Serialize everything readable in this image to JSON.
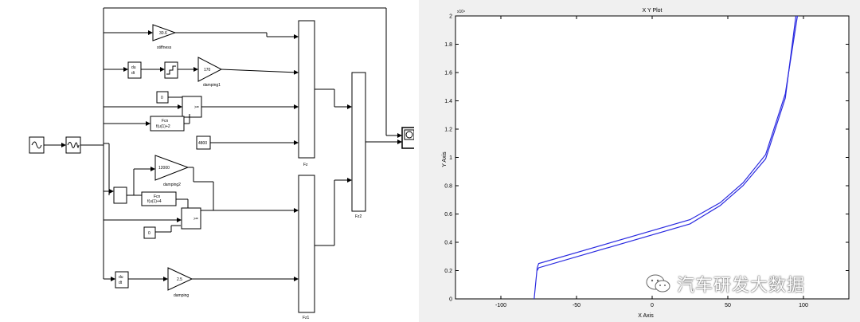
{
  "diagram": {
    "blocks": {
      "gain_stiffness": {
        "value": "30.6",
        "label": "stiffness"
      },
      "gain_damping1": {
        "value": "170",
        "label": "damping1"
      },
      "gain_damping2": {
        "value": "12000",
        "label": "damping2"
      },
      "gain_damping": {
        "value": "2.5",
        "label": "damping"
      },
      "const_top": "0",
      "const_bottom": "0",
      "const_4800": "4800",
      "fcn_top": {
        "line1": "Fcn",
        "line2": "f(u(1)+2"
      },
      "fcn_bottom": {
        "line1": "Fcn",
        "line2": "f(u(1)+4"
      },
      "deriv_top": {
        "line1": "du",
        "line2": "dt"
      },
      "deriv_bottom": {
        "line1": "du",
        "line2": "dt"
      },
      "switch_label": ">=",
      "mux_fz": "Fz",
      "mux_fz1": "Fz1",
      "mux_fz2": "Fz2"
    }
  },
  "plot": {
    "title": "X Y Plot",
    "xlabel": "X Axis",
    "ylabel": "Y Axis",
    "exponent_label": "x10⁴"
  },
  "chart_data": {
    "type": "line",
    "title": "X Y Plot",
    "xlabel": "X Axis",
    "ylabel": "Y Axis",
    "xlim": [
      -130,
      130
    ],
    "ylim": [
      0,
      2
    ],
    "y_scale_exponent": 4,
    "xticks": [
      -100,
      -50,
      0,
      50,
      100
    ],
    "xtick_labels": [
      "-100",
      "-50",
      "0",
      "50",
      "100"
    ],
    "yticks": [
      0,
      0.2,
      0.4,
      0.6,
      0.8,
      1,
      1.2,
      1.4,
      1.6,
      1.8,
      2
    ],
    "ytick_labels": [
      "0",
      "0.2",
      "0.4",
      "0.6",
      "0.8",
      "1",
      "1.2",
      "1.4",
      "1.6",
      "1.8",
      "2"
    ],
    "grid": false,
    "series": [
      {
        "x": [
          -78,
          -76,
          -75,
          25,
          45,
          60,
          75,
          88,
          96
        ],
        "y": [
          0,
          0.22,
          0.25,
          0.56,
          0.68,
          0.82,
          1.02,
          1.45,
          2.0
        ],
        "color": "#2a2ae0"
      },
      {
        "x": [
          -76,
          -75,
          25,
          45,
          60,
          75,
          88,
          95
        ],
        "y": [
          0.2,
          0.22,
          0.53,
          0.66,
          0.8,
          0.99,
          1.42,
          2.0
        ],
        "color": "#2a2ae0"
      }
    ]
  },
  "watermark": {
    "text": "汽车研发大数据"
  }
}
